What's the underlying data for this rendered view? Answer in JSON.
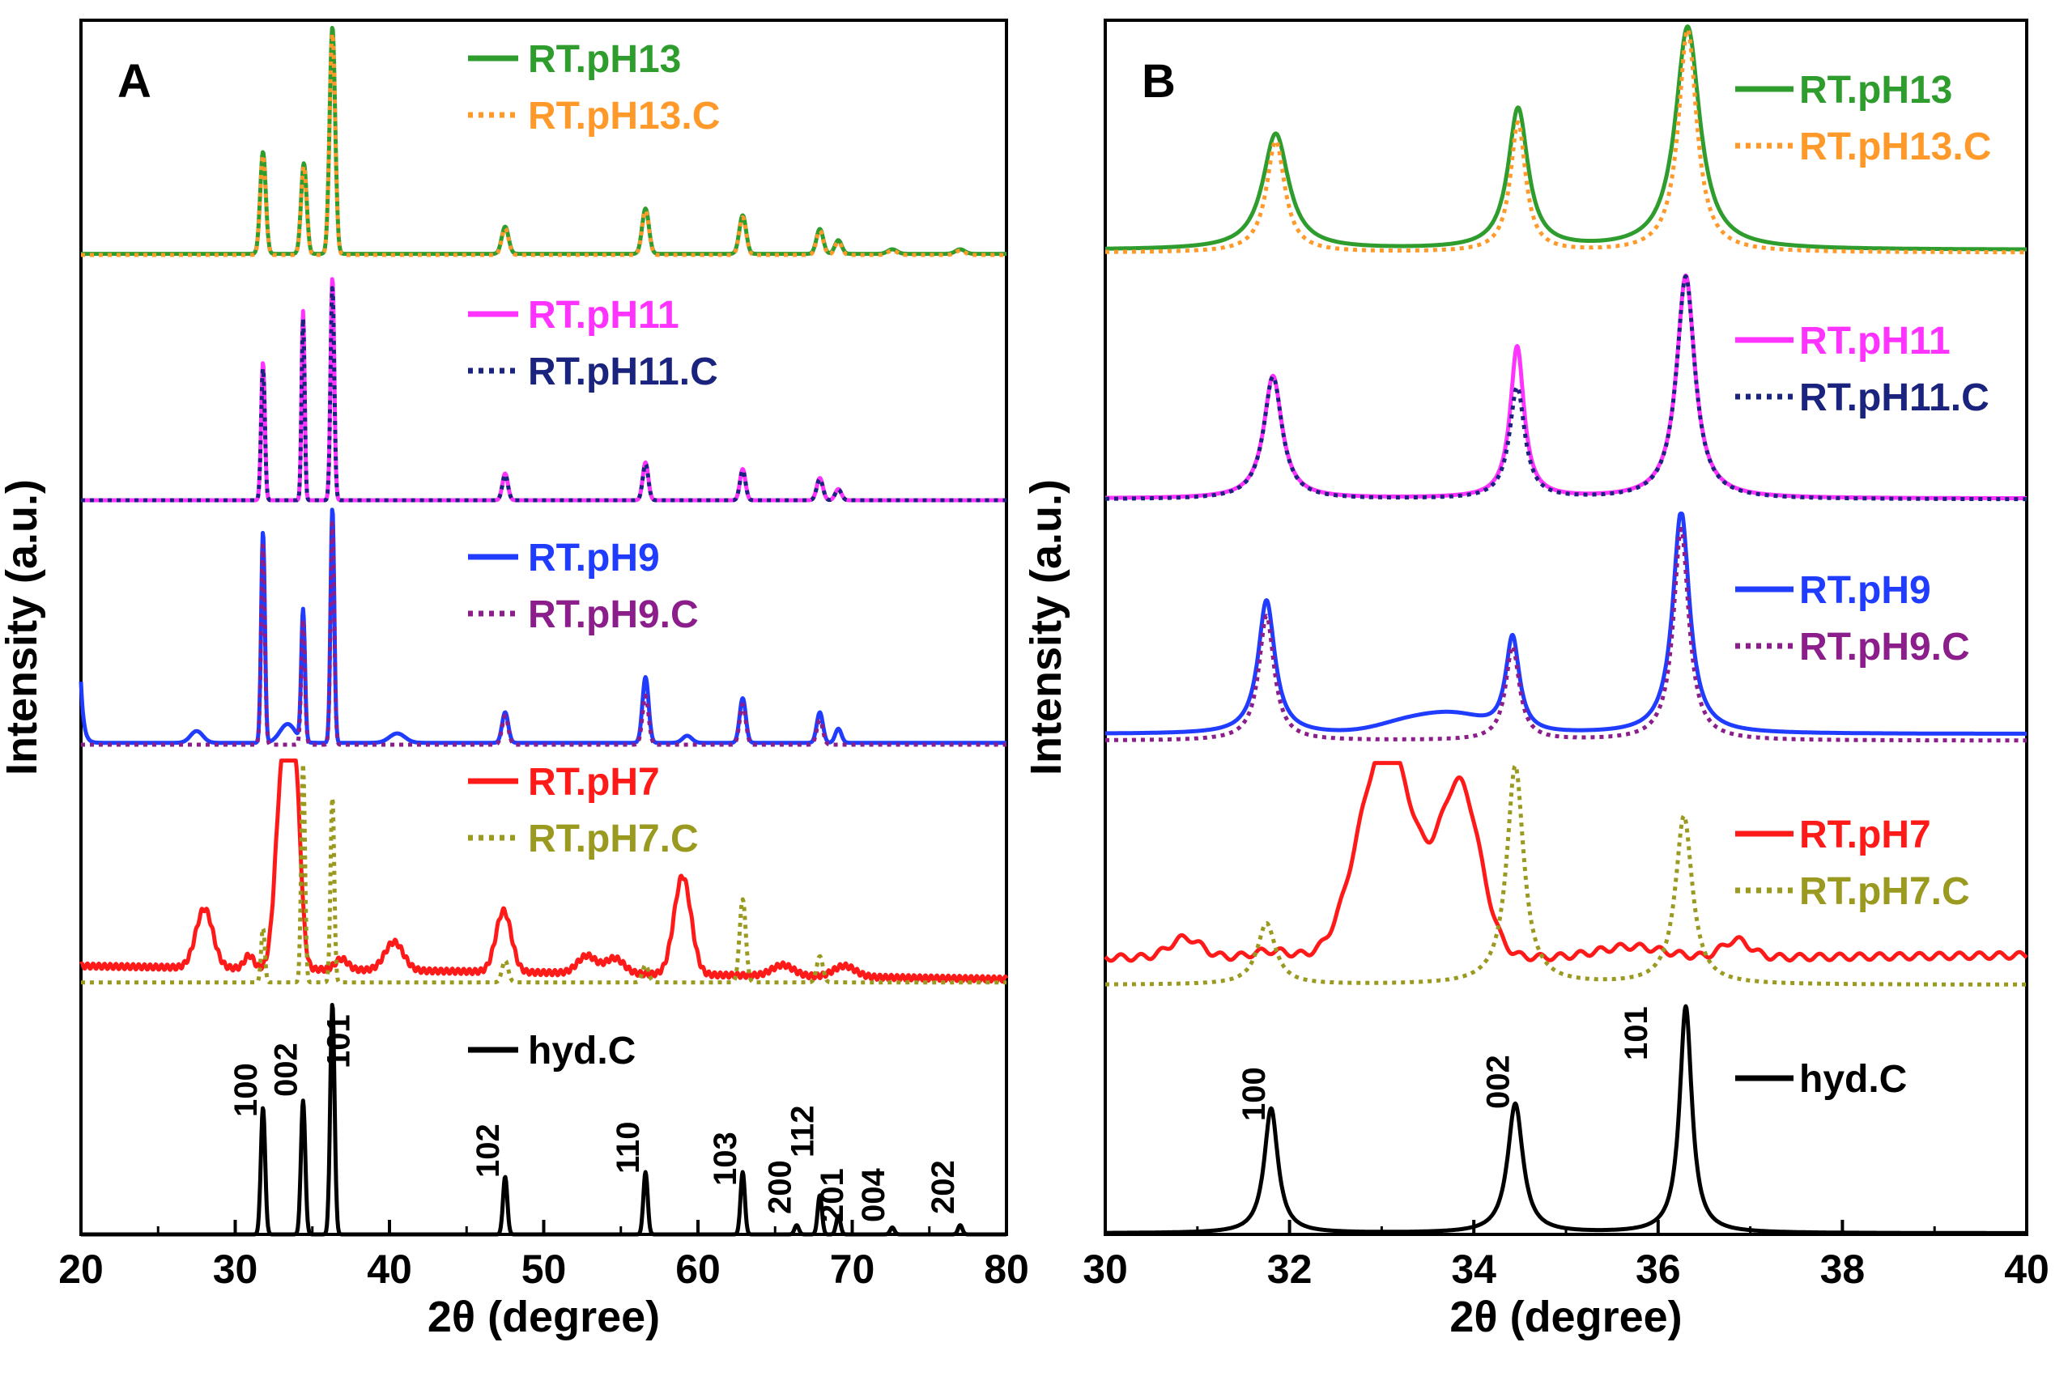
{
  "chart_data": [
    {
      "type": "line",
      "panel_label": "A",
      "xlabel": "2θ (degree)",
      "ylabel": "Intensity (a.u.)",
      "xlim": [
        20,
        80
      ],
      "xticks": [
        "20",
        "30",
        "40",
        "50",
        "60",
        "70",
        "80"
      ],
      "series": [
        {
          "name": "RT.pH13",
          "style": "solid",
          "color": "#2e9d2e",
          "group": 0
        },
        {
          "name": "RT.pH13.C",
          "style": "dotted",
          "color": "#ff9a2a",
          "group": 0
        },
        {
          "name": "RT.pH11",
          "style": "solid",
          "color": "#ff33ff",
          "group": 1
        },
        {
          "name": "RT.pH11.C",
          "style": "dotted",
          "color": "#1a237e",
          "group": 1
        },
        {
          "name": "RT.pH9",
          "style": "solid",
          "color": "#1f3cff",
          "group": 2
        },
        {
          "name": "RT.pH9.C",
          "style": "dotted",
          "color": "#8b1e8b",
          "group": 2
        },
        {
          "name": "RT.pH7",
          "style": "solid",
          "color": "#ff1a1a",
          "group": 3
        },
        {
          "name": "RT.pH7.C",
          "style": "dotted",
          "color": "#9a9a20",
          "group": 3
        },
        {
          "name": "hyd.C",
          "style": "solid",
          "color": "#000000",
          "group": 4
        }
      ],
      "reference_peaks": [
        {
          "label": "100",
          "x": 31.8,
          "height": 0.55
        },
        {
          "label": "002",
          "x": 34.4,
          "height": 0.58
        },
        {
          "label": "101",
          "x": 36.3,
          "height": 1.0
        },
        {
          "label": "102",
          "x": 47.5,
          "height": 0.25
        },
        {
          "label": "110",
          "x": 56.6,
          "height": 0.27
        },
        {
          "label": "103",
          "x": 62.9,
          "height": 0.27
        },
        {
          "label": "200",
          "x": 66.4,
          "height": 0.04
        },
        {
          "label": "112",
          "x": 67.9,
          "height": 0.17
        },
        {
          "label": "201",
          "x": 69.1,
          "height": 0.08
        },
        {
          "label": "004",
          "x": 72.6,
          "height": 0.03
        },
        {
          "label": "202",
          "x": 77.0,
          "height": 0.04
        }
      ]
    },
    {
      "type": "line",
      "panel_label": "B",
      "xlabel": "2θ (degree)",
      "ylabel": "Intensity (a.u.)",
      "xlim": [
        30,
        40
      ],
      "xticks": [
        "30",
        "32",
        "34",
        "36",
        "38",
        "40"
      ],
      "series": [
        {
          "name": "RT.pH13",
          "style": "solid",
          "color": "#2e9d2e",
          "group": 0
        },
        {
          "name": "RT.pH13.C",
          "style": "dotted",
          "color": "#ff9a2a",
          "group": 0
        },
        {
          "name": "RT.pH11",
          "style": "solid",
          "color": "#ff33ff",
          "group": 1
        },
        {
          "name": "RT.pH11.C",
          "style": "dotted",
          "color": "#1a237e",
          "group": 1
        },
        {
          "name": "RT.pH9",
          "style": "solid",
          "color": "#1f3cff",
          "group": 2
        },
        {
          "name": "RT.pH9.C",
          "style": "dotted",
          "color": "#8b1e8b",
          "group": 2
        },
        {
          "name": "RT.pH7",
          "style": "solid",
          "color": "#ff1a1a",
          "group": 3
        },
        {
          "name": "RT.pH7.C",
          "style": "dotted",
          "color": "#9a9a20",
          "group": 3
        },
        {
          "name": "hyd.C",
          "style": "solid",
          "color": "#000000",
          "group": 4
        }
      ],
      "reference_peaks": [
        {
          "label": "100",
          "x": 31.8
        },
        {
          "label": "002",
          "x": 34.45
        },
        {
          "label": "101",
          "x": 36.3
        }
      ]
    }
  ]
}
